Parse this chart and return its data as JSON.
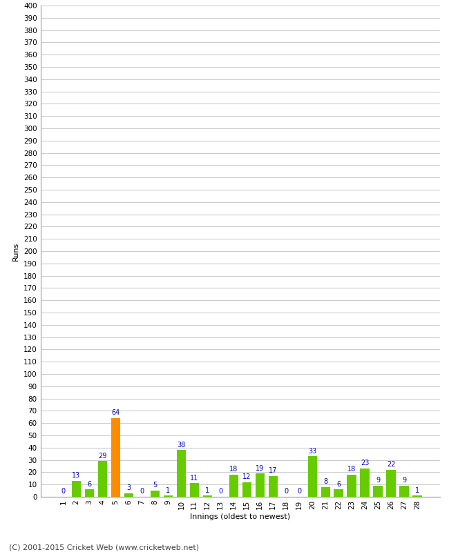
{
  "innings": [
    1,
    2,
    3,
    4,
    5,
    6,
    7,
    8,
    9,
    10,
    11,
    12,
    13,
    14,
    15,
    16,
    17,
    18,
    19,
    20,
    21,
    22,
    23,
    24,
    25,
    26,
    27,
    28
  ],
  "runs": [
    0,
    13,
    6,
    29,
    64,
    3,
    0,
    5,
    1,
    38,
    11,
    1,
    0,
    18,
    12,
    19,
    17,
    0,
    0,
    33,
    8,
    6,
    18,
    23,
    9,
    22,
    9,
    1
  ],
  "bar_colors": [
    "#66cc00",
    "#66cc00",
    "#66cc00",
    "#66cc00",
    "#ff8c00",
    "#66cc00",
    "#66cc00",
    "#66cc00",
    "#66cc00",
    "#66cc00",
    "#66cc00",
    "#66cc00",
    "#66cc00",
    "#66cc00",
    "#66cc00",
    "#66cc00",
    "#66cc00",
    "#66cc00",
    "#66cc00",
    "#66cc00",
    "#66cc00",
    "#66cc00",
    "#66cc00",
    "#66cc00",
    "#66cc00",
    "#66cc00",
    "#66cc00",
    "#66cc00"
  ],
  "xlabel": "Innings (oldest to newest)",
  "ylabel": "Runs",
  "ylim": [
    0,
    400
  ],
  "yticks": [
    0,
    10,
    20,
    30,
    40,
    50,
    60,
    70,
    80,
    90,
    100,
    110,
    120,
    130,
    140,
    150,
    160,
    170,
    180,
    190,
    200,
    210,
    220,
    230,
    240,
    250,
    260,
    270,
    280,
    290,
    300,
    310,
    320,
    330,
    340,
    350,
    360,
    370,
    380,
    390,
    400
  ],
  "label_color": "#0000cc",
  "label_fontsize": 7,
  "axis_label_fontsize": 8,
  "tick_fontsize": 7.5,
  "background_color": "#ffffff",
  "grid_color": "#cccccc",
  "footer_text": "(C) 2001-2015 Cricket Web (www.cricketweb.net)",
  "footer_fontsize": 8,
  "footer_color": "#444444"
}
